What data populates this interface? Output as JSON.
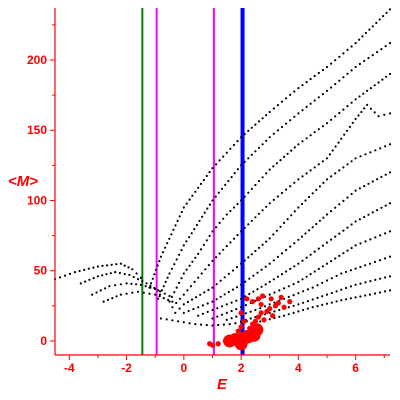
{
  "chart_data": {
    "type": "scatter",
    "title": "",
    "xlabel": "E",
    "ylabel": "<M>",
    "xlim": [
      -4.5,
      7.2
    ],
    "ylim": [
      -10,
      237
    ],
    "grid": false,
    "x_ticks": [
      -4,
      -2,
      0,
      2,
      4,
      6
    ],
    "y_ticks": [
      0,
      50,
      100,
      150,
      200
    ],
    "colors": {
      "axis": "#ff0000",
      "points": "#000000",
      "highlight": "#ff0000",
      "line_green": "#008000",
      "line_magenta": "#ff00ff",
      "line_blue": "#0000ff"
    },
    "vertical_lines": [
      {
        "x": -1.45,
        "color": "#008000",
        "width": 2
      },
      {
        "x": -0.95,
        "color": "#ff00ff",
        "width": 2
      },
      {
        "x": 1.05,
        "color": "#ff00ff",
        "width": 2
      },
      {
        "x": 2.05,
        "color": "#0000ff",
        "width": 4
      }
    ],
    "branches": [
      {
        "points": [
          [
            -4.5,
            44
          ],
          [
            -3.8,
            49
          ],
          [
            -3.0,
            53
          ],
          [
            -2.2,
            55
          ],
          [
            -1.8,
            51
          ],
          [
            -1.5,
            45
          ]
        ]
      },
      {
        "points": [
          [
            -3.6,
            41
          ],
          [
            -3.0,
            46
          ],
          [
            -2.4,
            49
          ],
          [
            -1.9,
            47
          ],
          [
            -1.3,
            41
          ],
          [
            -0.9,
            36
          ]
        ]
      },
      {
        "points": [
          [
            -3.2,
            33
          ],
          [
            -2.6,
            39
          ],
          [
            -2.0,
            41
          ],
          [
            -1.5,
            40
          ],
          [
            -1.0,
            37
          ],
          [
            -0.5,
            32
          ]
        ]
      },
      {
        "points": [
          [
            -2.8,
            28
          ],
          [
            -2.2,
            33
          ],
          [
            -1.6,
            35
          ],
          [
            -1.0,
            33
          ],
          [
            -0.4,
            28
          ]
        ]
      },
      {
        "points": [
          [
            -1.2,
            38
          ],
          [
            -0.8,
            60
          ],
          [
            0.0,
            95
          ],
          [
            1.0,
            123
          ],
          [
            2.0,
            145
          ],
          [
            3.0,
            163
          ],
          [
            4.0,
            180
          ],
          [
            5.0,
            195
          ],
          [
            6.0,
            212
          ],
          [
            7.2,
            236
          ]
        ]
      },
      {
        "points": [
          [
            -0.9,
            30
          ],
          [
            -0.5,
            48
          ],
          [
            0.0,
            68
          ],
          [
            1.0,
            100
          ],
          [
            2.0,
            125
          ],
          [
            3.0,
            145
          ],
          [
            4.0,
            162
          ],
          [
            5.0,
            178
          ],
          [
            6.0,
            195
          ],
          [
            7.2,
            212
          ]
        ]
      },
      {
        "points": [
          [
            -0.5,
            28
          ],
          [
            0.0,
            48
          ],
          [
            0.5,
            62
          ],
          [
            1.0,
            78
          ],
          [
            1.5,
            90
          ],
          [
            2.0,
            100
          ],
          [
            3.0,
            122
          ],
          [
            4.0,
            140
          ],
          [
            5.0,
            155
          ],
          [
            6.0,
            172
          ],
          [
            7.2,
            190
          ]
        ]
      },
      {
        "points": [
          [
            -0.4,
            24
          ],
          [
            0.0,
            33
          ],
          [
            0.5,
            45
          ],
          [
            1.0,
            57
          ],
          [
            2.0,
            78
          ],
          [
            3.0,
            98
          ],
          [
            4.0,
            115
          ],
          [
            5.0,
            130
          ],
          [
            6.0,
            158
          ],
          [
            6.4,
            168
          ],
          [
            6.8,
            160
          ],
          [
            7.2,
            162
          ]
        ]
      },
      {
        "points": [
          [
            -0.3,
            20
          ],
          [
            0.0,
            26
          ],
          [
            1.0,
            38
          ],
          [
            2.0,
            55
          ],
          [
            3.0,
            73
          ],
          [
            4.0,
            95
          ],
          [
            5.0,
            115
          ],
          [
            6.0,
            130
          ],
          [
            7.2,
            140
          ]
        ]
      },
      {
        "points": [
          [
            0.0,
            20
          ],
          [
            1.0,
            28
          ],
          [
            2.0,
            40
          ],
          [
            3.0,
            55
          ],
          [
            4.0,
            72
          ],
          [
            5.0,
            90
          ],
          [
            6.0,
            107
          ],
          [
            7.2,
            120
          ]
        ]
      },
      {
        "points": [
          [
            0.5,
            18
          ],
          [
            1.0,
            22
          ],
          [
            2.0,
            30
          ],
          [
            3.0,
            42
          ],
          [
            4.0,
            55
          ],
          [
            5.0,
            70
          ],
          [
            6.0,
            85
          ],
          [
            7.2,
            98
          ]
        ]
      },
      {
        "points": [
          [
            1.0,
            16
          ],
          [
            2.0,
            24
          ],
          [
            3.0,
            33
          ],
          [
            4.0,
            42
          ],
          [
            5.0,
            55
          ],
          [
            6.0,
            68
          ],
          [
            7.2,
            78
          ]
        ]
      },
      {
        "points": [
          [
            1.5,
            15
          ],
          [
            2.5,
            22
          ],
          [
            3.5,
            30
          ],
          [
            4.5,
            38
          ],
          [
            5.5,
            48
          ],
          [
            6.5,
            55
          ],
          [
            7.2,
            60
          ]
        ]
      },
      {
        "points": [
          [
            2.0,
            14
          ],
          [
            3.0,
            20
          ],
          [
            4.0,
            26
          ],
          [
            5.0,
            33
          ],
          [
            6.0,
            40
          ],
          [
            7.2,
            46
          ]
        ]
      },
      {
        "points": [
          [
            2.5,
            13
          ],
          [
            3.5,
            18
          ],
          [
            4.5,
            24
          ],
          [
            5.5,
            29
          ],
          [
            6.5,
            33
          ],
          [
            7.2,
            36
          ]
        ]
      },
      {
        "points": [
          [
            -0.8,
            16
          ],
          [
            -0.2,
            14
          ],
          [
            0.4,
            12
          ],
          [
            1.0,
            11
          ],
          [
            1.6,
            12
          ],
          [
            2.2,
            14
          ]
        ]
      }
    ],
    "highlight_points": [
      [
        1.45,
        0
      ],
      [
        1.6,
        1
      ],
      [
        1.7,
        -1
      ],
      [
        1.8,
        0
      ],
      [
        1.9,
        2
      ],
      [
        2.0,
        -1
      ],
      [
        2.05,
        1
      ],
      [
        2.1,
        3
      ],
      [
        2.2,
        2
      ],
      [
        2.3,
        5
      ],
      [
        2.4,
        4
      ],
      [
        2.5,
        3
      ],
      [
        2.2,
        6
      ],
      [
        2.3,
        9
      ],
      [
        2.4,
        12
      ],
      [
        2.5,
        14
      ],
      [
        2.6,
        17
      ],
      [
        2.7,
        20
      ],
      [
        2.8,
        15
      ],
      [
        2.9,
        21
      ],
      [
        3.0,
        23
      ],
      [
        3.1,
        18
      ],
      [
        3.2,
        25
      ],
      [
        3.3,
        27
      ],
      [
        3.5,
        24
      ],
      [
        3.7,
        28
      ],
      [
        2.0,
        10
      ],
      [
        2.1,
        14
      ],
      [
        1.9,
        7
      ],
      [
        1.2,
        -2
      ],
      [
        1.0,
        -3
      ],
      [
        0.9,
        -2
      ],
      [
        2.6,
        30
      ],
      [
        2.7,
        26
      ],
      [
        2.75,
        32
      ],
      [
        3.05,
        30
      ],
      [
        2.2,
        30
      ],
      [
        2.4,
        28
      ],
      [
        3.4,
        31
      ],
      [
        2.0,
        20
      ]
    ],
    "big_highlight_points": [
      [
        1.6,
        0
      ],
      [
        1.8,
        1
      ],
      [
        1.95,
        0
      ],
      [
        2.1,
        2
      ],
      [
        2.25,
        3
      ],
      [
        2.45,
        4
      ],
      [
        2.55,
        8
      ],
      [
        2.0,
        -2
      ]
    ]
  }
}
